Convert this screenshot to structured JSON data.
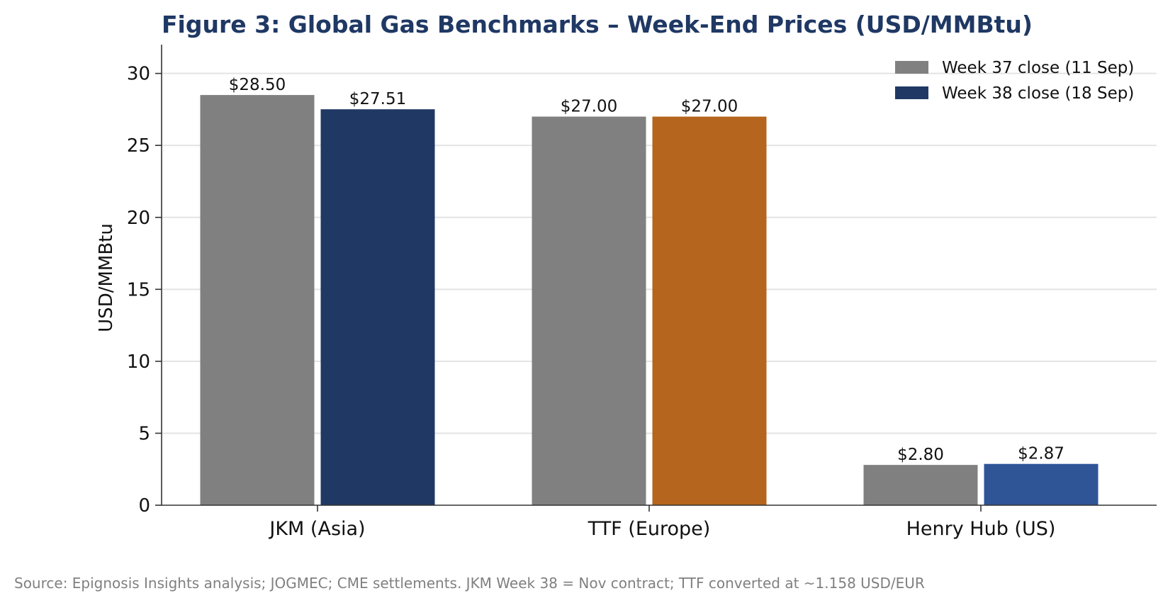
{
  "chart_data": {
    "type": "bar",
    "title": "Figure 3: Global Gas Benchmarks – Week-End Prices (USD/MMBtu)",
    "ylabel": "USD/MMBtu",
    "xlabel": "",
    "ylim": [
      0,
      32
    ],
    "yticks": [
      0,
      5,
      10,
      15,
      20,
      25,
      30
    ],
    "grid": true,
    "legend_position": "top-right",
    "categories": [
      "JKM (Asia)",
      "TTF (Europe)",
      "Henry Hub (US)"
    ],
    "series": [
      {
        "name": "Week 37 close (11 Sep)",
        "values": [
          28.5,
          27.0,
          2.8
        ],
        "labels": [
          "$28.50",
          "$27.00",
          "$2.80"
        ],
        "colors": [
          "#808080",
          "#808080",
          "#808080"
        ]
      },
      {
        "name": "Week 38 close (18 Sep)",
        "values": [
          27.51,
          27.0,
          2.87
        ],
        "labels": [
          "$27.51",
          "$27.00",
          "$2.87"
        ],
        "colors": [
          "#203864",
          "#b5651d",
          "#2f5597"
        ]
      }
    ],
    "legend_colors": [
      "#808080",
      "#203864"
    ],
    "source": "Source: Epignosis Insights analysis; JOGMEC; CME settlements. JKM Week 38 = Nov contract; TTF converted at ~1.158 USD/EUR"
  },
  "colors": {
    "title": "#1f3864",
    "grid": "#e3e3e3",
    "axis": "#333333",
    "source_text": "#808080"
  }
}
